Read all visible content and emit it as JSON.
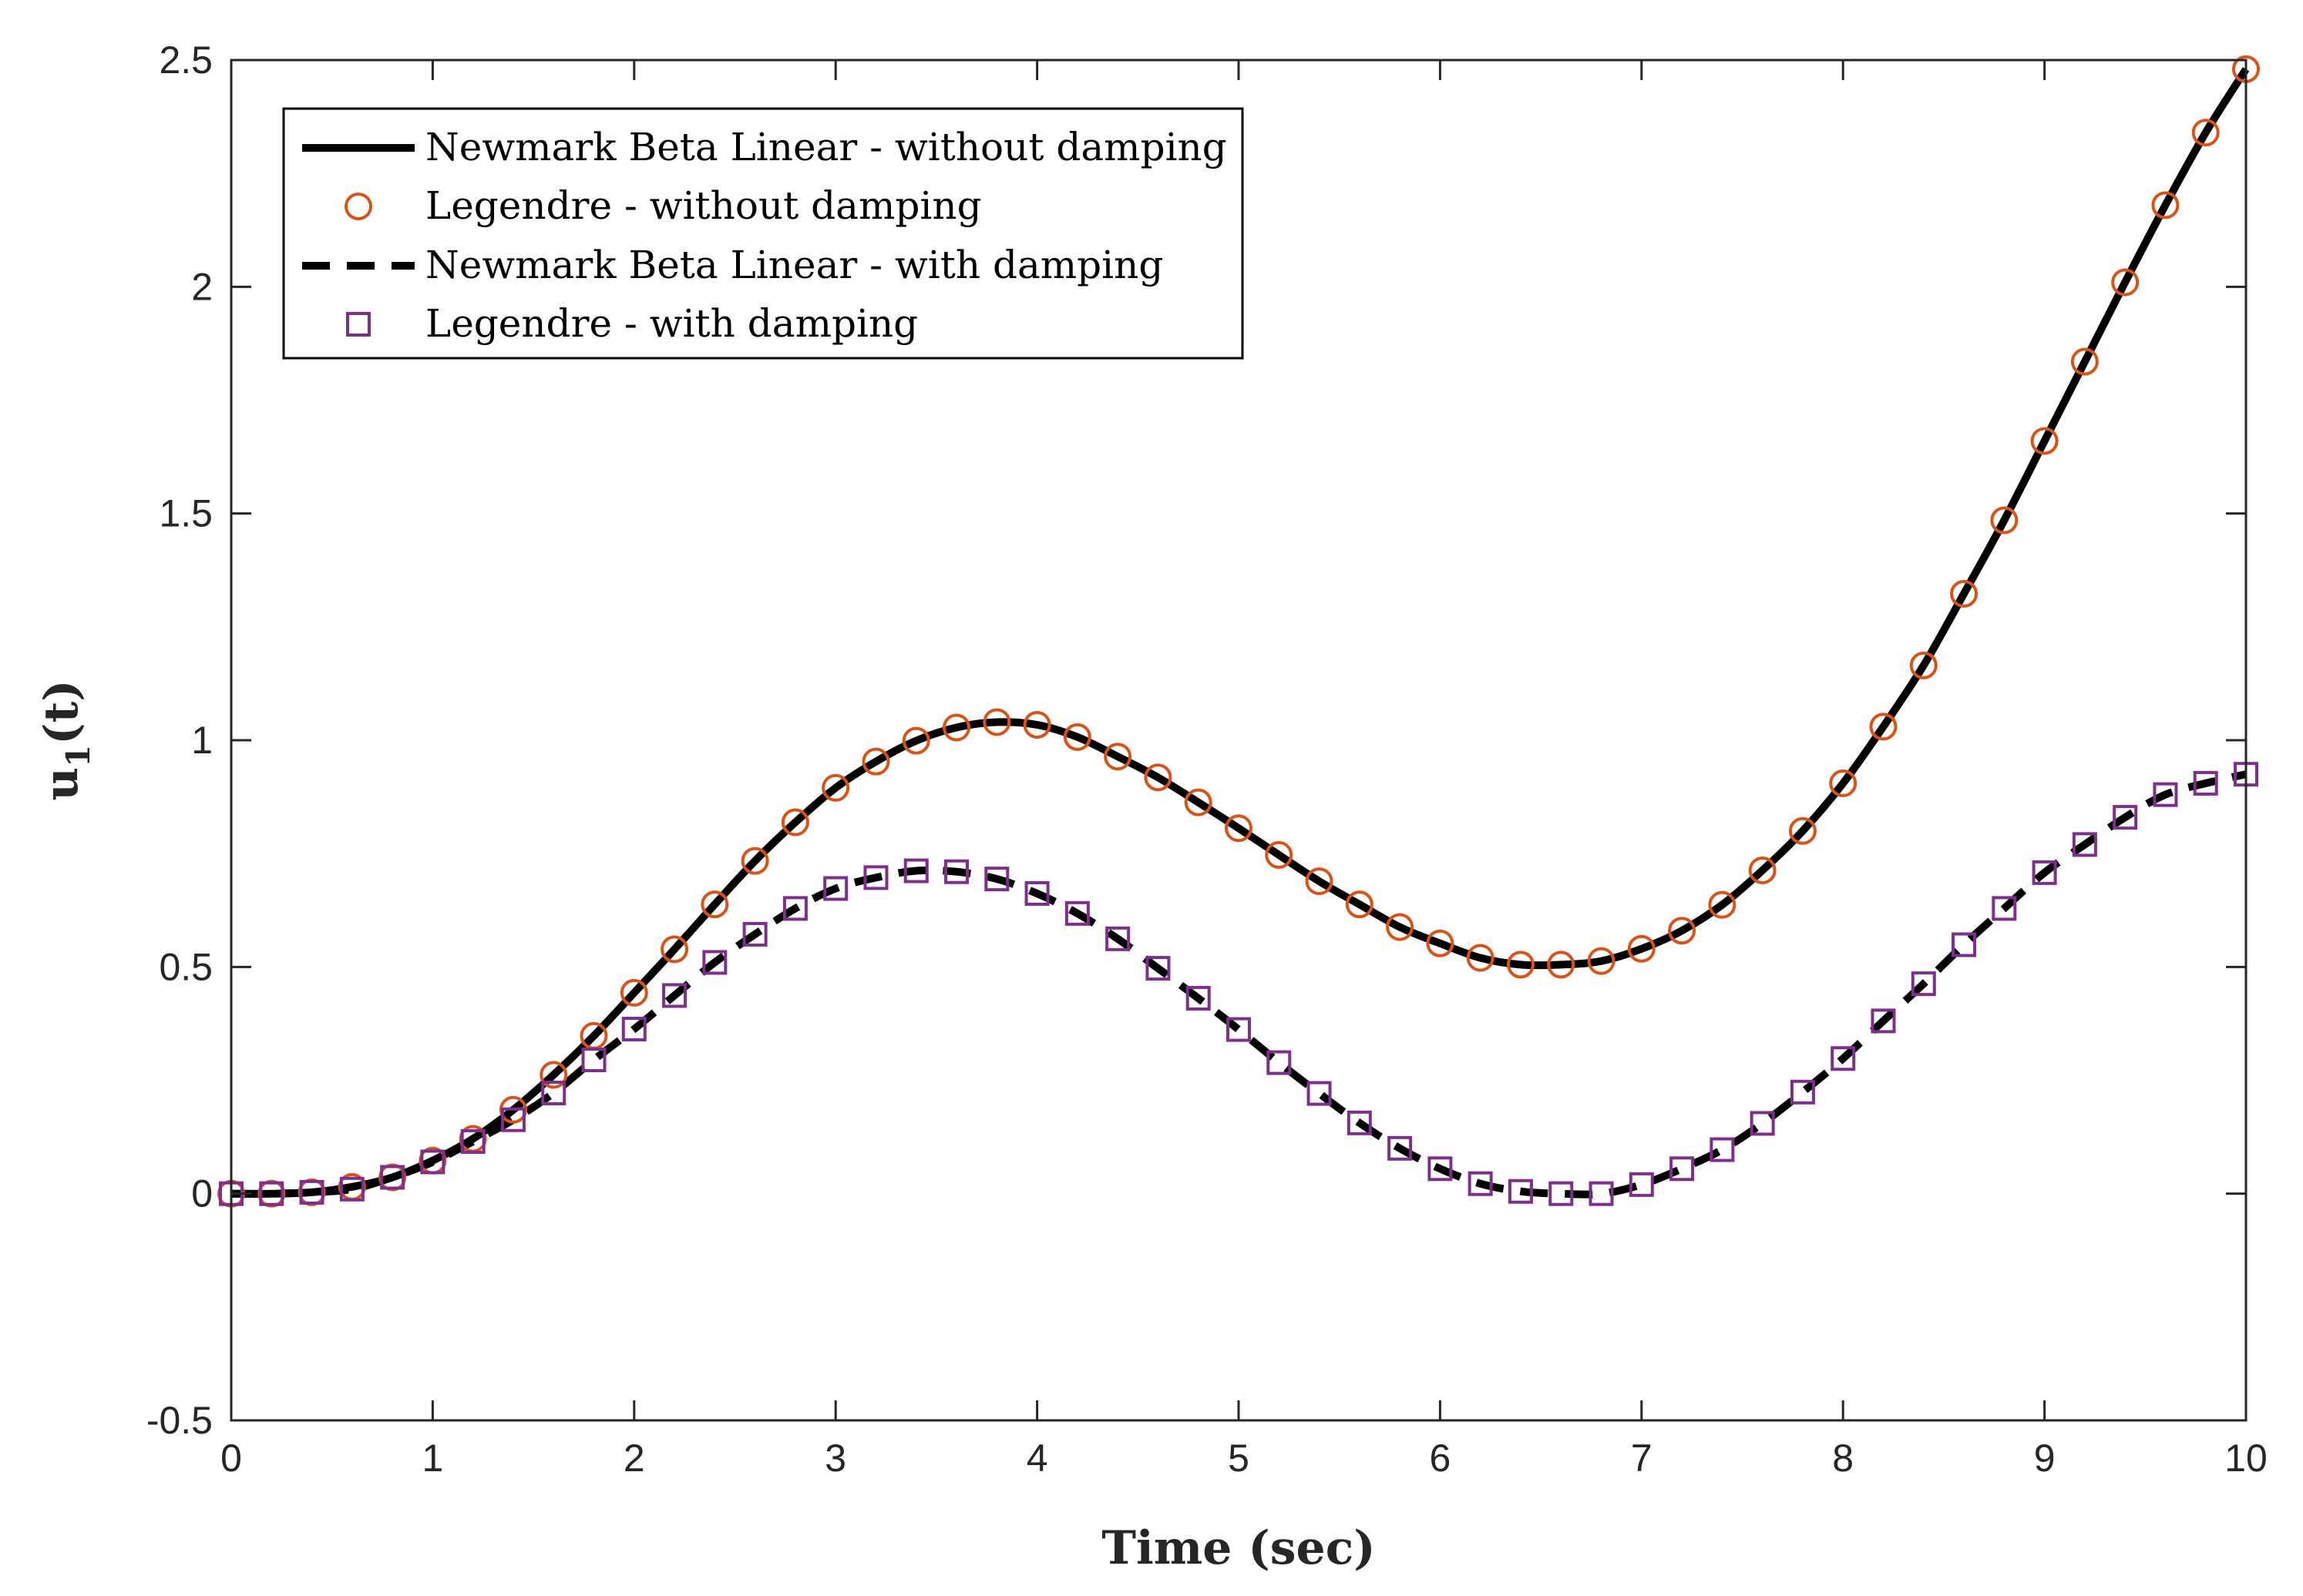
{
  "chart_data": {
    "type": "line",
    "title": "",
    "xlabel": "Time (sec)",
    "ylabel_main": "u",
    "ylabel_sub": "1",
    "ylabel_tail": "(t)",
    "xlim": [
      0,
      10
    ],
    "ylim": [
      -0.5,
      2.5
    ],
    "xticks": [
      0,
      1,
      2,
      3,
      4,
      5,
      6,
      7,
      8,
      9,
      10
    ],
    "yticks": [
      -0.5,
      0,
      0.5,
      1,
      1.5,
      2,
      2.5
    ],
    "xtick_labels": [
      "0",
      "1",
      "2",
      "3",
      "4",
      "5",
      "6",
      "7",
      "8",
      "9",
      "10"
    ],
    "ytick_labels": [
      "-0.5",
      "0",
      "0.5",
      "1",
      "1.5",
      "2",
      "2.5"
    ],
    "grid": false,
    "legend_position": "top-left",
    "x": [
      0,
      0.2,
      0.4,
      0.6,
      0.8,
      1.0,
      1.2,
      1.4,
      1.6,
      1.8,
      2.0,
      2.2,
      2.4,
      2.6,
      2.8,
      3.0,
      3.2,
      3.4,
      3.6,
      3.8,
      4.0,
      4.2,
      4.4,
      4.6,
      4.8,
      5.0,
      5.2,
      5.4,
      5.6,
      5.8,
      6.0,
      6.2,
      6.4,
      6.6,
      6.8,
      7.0,
      7.2,
      7.4,
      7.6,
      7.8,
      8.0,
      8.2,
      8.4,
      8.6,
      8.8,
      9.0,
      9.2,
      9.4,
      9.6,
      9.8,
      10.0
    ],
    "series": [
      {
        "name": "Newmark Beta Linear - without damping",
        "style": "solid",
        "color": "#000000",
        "values": [
          0.0,
          0.0,
          0.003,
          0.015,
          0.036,
          0.073,
          0.121,
          0.185,
          0.262,
          0.348,
          0.443,
          0.539,
          0.638,
          0.734,
          0.819,
          0.895,
          0.953,
          0.999,
          1.028,
          1.04,
          1.034,
          1.007,
          0.964,
          0.918,
          0.863,
          0.806,
          0.747,
          0.689,
          0.638,
          0.588,
          0.552,
          0.52,
          0.505,
          0.505,
          0.513,
          0.54,
          0.58,
          0.637,
          0.713,
          0.8,
          0.905,
          1.03,
          1.165,
          1.323,
          1.485,
          1.66,
          1.835,
          2.01,
          2.18,
          2.34,
          2.48
        ]
      },
      {
        "name": "Legendre - without damping",
        "style": "marker-circle",
        "color": "#D95319",
        "values": [
          0.0,
          0.0,
          0.003,
          0.015,
          0.036,
          0.073,
          0.121,
          0.185,
          0.262,
          0.348,
          0.443,
          0.539,
          0.638,
          0.734,
          0.819,
          0.895,
          0.953,
          0.999,
          1.028,
          1.04,
          1.034,
          1.007,
          0.964,
          0.918,
          0.863,
          0.806,
          0.747,
          0.689,
          0.638,
          0.588,
          0.552,
          0.52,
          0.505,
          0.505,
          0.513,
          0.54,
          0.58,
          0.637,
          0.713,
          0.8,
          0.905,
          1.03,
          1.165,
          1.323,
          1.485,
          1.66,
          1.835,
          2.01,
          2.18,
          2.34,
          2.48
        ]
      },
      {
        "name": "Newmark Beta Linear - with damping",
        "style": "dashed",
        "color": "#000000",
        "values": [
          0.0,
          0.0,
          0.003,
          0.01,
          0.036,
          0.07,
          0.115,
          0.163,
          0.222,
          0.295,
          0.363,
          0.437,
          0.51,
          0.572,
          0.629,
          0.673,
          0.697,
          0.712,
          0.71,
          0.694,
          0.662,
          0.618,
          0.562,
          0.497,
          0.431,
          0.362,
          0.289,
          0.221,
          0.156,
          0.1,
          0.055,
          0.022,
          0.005,
          0.0,
          0.0,
          0.02,
          0.055,
          0.097,
          0.155,
          0.224,
          0.298,
          0.381,
          0.463,
          0.549,
          0.629,
          0.708,
          0.77,
          0.83,
          0.88,
          0.905,
          0.925
        ]
      },
      {
        "name": "Legendre - with damping",
        "style": "marker-square",
        "color": "#7E2F8E",
        "values": [
          0.0,
          0.0,
          0.003,
          0.01,
          0.036,
          0.07,
          0.115,
          0.163,
          0.222,
          0.295,
          0.363,
          0.437,
          0.51,
          0.572,
          0.629,
          0.673,
          0.697,
          0.712,
          0.71,
          0.694,
          0.662,
          0.618,
          0.562,
          0.497,
          0.431,
          0.362,
          0.289,
          0.221,
          0.156,
          0.1,
          0.055,
          0.022,
          0.005,
          0.0,
          0.0,
          0.02,
          0.055,
          0.097,
          0.155,
          0.224,
          0.298,
          0.381,
          0.463,
          0.549,
          0.629,
          0.708,
          0.77,
          0.83,
          0.88,
          0.905,
          0.925
        ]
      }
    ]
  }
}
